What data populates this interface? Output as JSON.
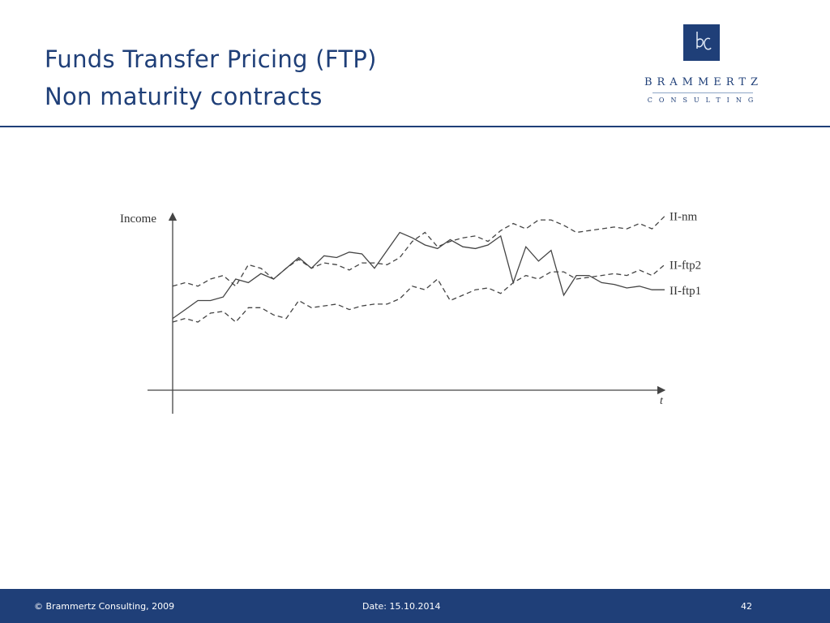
{
  "title": {
    "line1": "Funds Transfer Pricing (FTP)",
    "line2": "Non maturity contracts"
  },
  "logo": {
    "name": "BRAMMERTZ",
    "sub": "CONSULTING",
    "mark_text": "bc"
  },
  "chart_data": {
    "type": "line",
    "title": "",
    "xlabel": "t",
    "ylabel": "Income",
    "xlim": [
      0,
      40
    ],
    "ylim": [
      0,
      10
    ],
    "grid": false,
    "series": [
      {
        "name": "II-nm",
        "style": "dashed",
        "values": [
          5.8,
          6.0,
          5.8,
          6.2,
          6.4,
          5.8,
          7.0,
          6.8,
          6.2,
          6.8,
          7.3,
          6.8,
          7.1,
          7.0,
          6.7,
          7.1,
          7.1,
          7.0,
          7.4,
          8.3,
          8.8,
          8.0,
          8.3,
          8.5,
          8.6,
          8.3,
          8.9,
          9.3,
          9.0,
          9.5,
          9.5,
          9.2,
          8.8,
          8.9,
          9.0,
          9.1,
          9.0,
          9.3,
          9.0,
          9.7
        ]
      },
      {
        "name": "II-ftp2",
        "style": "dashed",
        "values": [
          3.8,
          4.0,
          3.8,
          4.3,
          4.4,
          3.8,
          4.6,
          4.6,
          4.2,
          4.0,
          5.0,
          4.6,
          4.7,
          4.8,
          4.5,
          4.7,
          4.8,
          4.8,
          5.1,
          5.8,
          5.6,
          6.2,
          5.0,
          5.3,
          5.6,
          5.7,
          5.4,
          6.0,
          6.4,
          6.2,
          6.6,
          6.6,
          6.2,
          6.3,
          6.4,
          6.5,
          6.4,
          6.7,
          6.4,
          7.0
        ]
      },
      {
        "name": "II-ftp1",
        "style": "solid",
        "values": [
          4.0,
          4.5,
          5.0,
          5.0,
          5.2,
          6.2,
          6.0,
          6.5,
          6.2,
          6.8,
          7.4,
          6.8,
          7.5,
          7.4,
          7.7,
          7.6,
          6.8,
          7.8,
          8.8,
          8.5,
          8.1,
          7.9,
          8.4,
          8.0,
          7.9,
          8.1,
          8.6,
          6.0,
          8.0,
          7.2,
          7.8,
          5.3,
          6.4,
          6.4,
          6.0,
          5.9,
          5.7,
          5.8,
          5.6,
          5.6
        ]
      }
    ]
  },
  "footer": {
    "copyright": "© Brammertz Consulting, 2009",
    "date": "Date: 15.10.2014",
    "page": "42"
  },
  "colors": {
    "brand": "#1f3f78",
    "chart_ink": "#444444"
  }
}
